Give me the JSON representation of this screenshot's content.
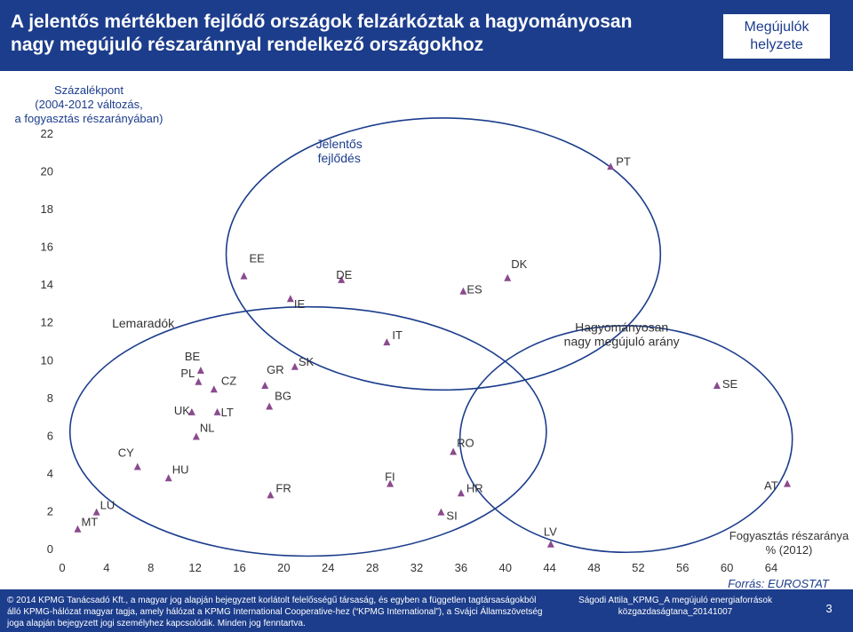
{
  "slide": {
    "title": "A jelentős mértékben fejlődő országok felzárkóztak a hagyományosan\nnagy megújuló részaránnyal rendelkező országokhoz",
    "badge": "Megújulók\nhelyzete"
  },
  "colors": {
    "header_bg": "#1c3d8c",
    "marker": "#8a4a8e",
    "annotation": "#1c3d8c",
    "ellipse_stroke": "#1c3d8c"
  },
  "chart_data": {
    "type": "scatter",
    "ylabel": "Százalékpont\n(2004-2012 változás,\na fogyasztás részarányában)",
    "xlabel": "Fogyasztás részaránya\n% (2012)",
    "source": "Forrás: EUROSTAT",
    "xlim": [
      0,
      64
    ],
    "ylim": [
      0,
      22
    ],
    "xticks": [
      0,
      4,
      8,
      12,
      16,
      20,
      24,
      28,
      32,
      36,
      40,
      44,
      48,
      52,
      56,
      60,
      64
    ],
    "yticks": [
      0,
      2,
      4,
      6,
      8,
      10,
      12,
      14,
      16,
      18,
      20,
      22
    ],
    "grid": false,
    "groups": [
      "Jelentős\nfejlődés",
      "Lemaradók",
      "Hagyományosan\nnagy megújuló arány"
    ],
    "points": [
      {
        "code": "MT",
        "x": 1.4,
        "y": 1.0
      },
      {
        "code": "LU",
        "x": 3.1,
        "y": 1.9
      },
      {
        "code": "CY",
        "x": 6.8,
        "y": 4.3
      },
      {
        "code": "HU",
        "x": 9.6,
        "y": 3.7
      },
      {
        "code": "UK",
        "x": 11.7,
        "y": 7.2
      },
      {
        "code": "NL",
        "x": 12.1,
        "y": 5.9
      },
      {
        "code": "PL",
        "x": 12.3,
        "y": 8.8
      },
      {
        "code": "BE",
        "x": 12.5,
        "y": 9.4
      },
      {
        "code": "CZ",
        "x": 13.7,
        "y": 8.4
      },
      {
        "code": "LT",
        "x": 14.0,
        "y": 7.2
      },
      {
        "code": "EE",
        "x": 16.4,
        "y": 14.4
      },
      {
        "code": "GR",
        "x": 18.3,
        "y": 8.6
      },
      {
        "code": "BG",
        "x": 18.7,
        "y": 7.5
      },
      {
        "code": "FR",
        "x": 18.8,
        "y": 2.8
      },
      {
        "code": "IE",
        "x": 20.6,
        "y": 13.2
      },
      {
        "code": "SK",
        "x": 21.0,
        "y": 9.6
      },
      {
        "code": "DE",
        "x": 25.2,
        "y": 14.2
      },
      {
        "code": "IT",
        "x": 29.3,
        "y": 10.9
      },
      {
        "code": "FI",
        "x": 29.6,
        "y": 3.4
      },
      {
        "code": "SI",
        "x": 34.2,
        "y": 1.9
      },
      {
        "code": "RO",
        "x": 35.3,
        "y": 5.1
      },
      {
        "code": "HR",
        "x": 36.0,
        "y": 2.9
      },
      {
        "code": "ES",
        "x": 36.2,
        "y": 13.6
      },
      {
        "code": "DK",
        "x": 40.2,
        "y": 14.3
      },
      {
        "code": "LV",
        "x": 44.1,
        "y": 0.2
      },
      {
        "code": "PT",
        "x": 49.5,
        "y": 20.2
      },
      {
        "code": "SE",
        "x": 59.1,
        "y": 8.6
      },
      {
        "code": "AT",
        "x": 65.7,
        "y": 3.4
      }
    ]
  },
  "footer": {
    "legal": "© 2014 KPMG Tanácsadó Kft., a magyar jog alapján bejegyzett korlátolt felelősségű társaság, és egyben a független tagtársaságokból álló KPMG-hálózat magyar tagja, amely hálózat a KPMG International Cooperative-hez (“KPMG International”), a Svájci Államszövetség joga alapján bejegyzett jogi személyhez kapcsolódik. Minden jog fenntartva.",
    "author": "Ságodi Attila_KPMG_A megújuló energiaforrások\nközgazdaságtana_20141007",
    "page": "3"
  }
}
